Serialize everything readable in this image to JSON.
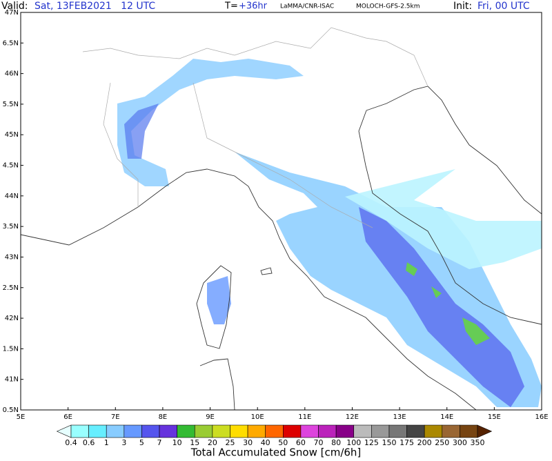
{
  "header": {
    "valid_label": "Valid:",
    "valid_time": "Sat, 13FEB2021   12 UTC",
    "lead_label": "T=",
    "lead_time": "+36hr",
    "source": "LaMMA/CNR-ISAC",
    "model": "MOLOCH-GFS-2.5km",
    "init_label": "Init:",
    "init_time": "Fri, 00 UTC"
  },
  "map": {
    "lat_labels": [
      "47N",
      "6.5N",
      "46N",
      "5.5N",
      "45N",
      "4.5N",
      "44N",
      "3.5N",
      "43N",
      "2.5N",
      "42N",
      "1.5N",
      "41N",
      "0.5N"
    ],
    "lon_labels": [
      "5E",
      "6E",
      "7E",
      "8E",
      "9E",
      "10E",
      "11E",
      "12E",
      "13E",
      "14E",
      "15E",
      "16E"
    ]
  },
  "colorbar": {
    "title": "Total Accumulated Snow [cm/6h]",
    "levels": [
      "0.4",
      "0.6",
      "1",
      "3",
      "5",
      "7",
      "10",
      "15",
      "20",
      "25",
      "30",
      "40",
      "50",
      "60",
      "70",
      "80",
      "100",
      "125",
      "150",
      "175",
      "200",
      "250",
      "300",
      "350"
    ],
    "colors": [
      "#e6ffff",
      "#99ffff",
      "#66eeff",
      "#88ccff",
      "#6699ff",
      "#5555ee",
      "#6633dd",
      "#33bb33",
      "#99cc33",
      "#ccdd22",
      "#ffdd00",
      "#ffaa00",
      "#ff6600",
      "#dd0000",
      "#dd44dd",
      "#bb22bb",
      "#880088",
      "#bbbbbb",
      "#999999",
      "#777777",
      "#444444",
      "#aa8800",
      "#996633",
      "#774411",
      "#552200"
    ]
  }
}
